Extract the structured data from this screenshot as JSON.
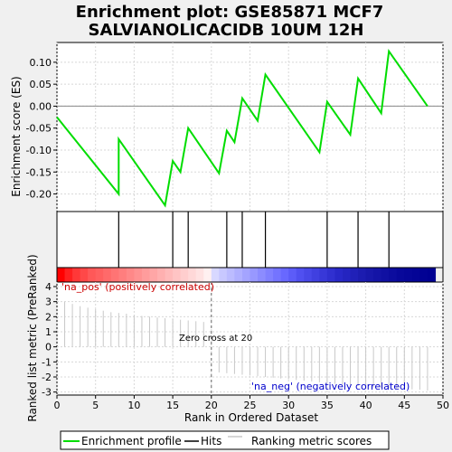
{
  "chart_data": {
    "type": "line",
    "title_line1": "Enrichment plot: GSE85871 MCF7",
    "title_line2": "SALVIANOLICACIDB 10UM 12H",
    "xlabel": "Rank in Ordered Dataset",
    "es_ylabel": "Enrichment score (ES)",
    "metric_ylabel": "Ranked list metric (PreRanked)",
    "xlim": [
      0,
      50
    ],
    "x_ticks": [
      0,
      5,
      10,
      15,
      20,
      25,
      30,
      35,
      40,
      45,
      50
    ],
    "es_ylim": [
      -0.24,
      0.145
    ],
    "es_ticks": [
      -0.2,
      -0.15,
      -0.1,
      -0.05,
      0.0,
      0.05,
      0.1
    ],
    "es_tick_labels": [
      "-0.20",
      "-0.15",
      "-0.10",
      "-0.05",
      "0.00",
      "0.05",
      "0.10"
    ],
    "metric_ylim": [
      -3.2,
      4.3
    ],
    "metric_ticks": [
      -3,
      -2,
      -1,
      0,
      1,
      2,
      3,
      4
    ],
    "es_curve": [
      [
        0,
        -0.025
      ],
      [
        8,
        -0.2
      ],
      [
        8,
        -0.075
      ],
      [
        14,
        -0.226
      ],
      [
        15,
        -0.125
      ],
      [
        16,
        -0.15
      ],
      [
        17,
        -0.05
      ],
      [
        21,
        -0.153
      ],
      [
        22,
        -0.056
      ],
      [
        23,
        -0.082
      ],
      [
        24,
        0.018
      ],
      [
        26,
        -0.033
      ],
      [
        27,
        0.072
      ],
      [
        34,
        -0.105
      ],
      [
        35,
        0.01
      ],
      [
        38,
        -0.065
      ],
      [
        39,
        0.063
      ],
      [
        42,
        -0.016
      ],
      [
        43,
        0.125
      ],
      [
        48,
        0.0
      ]
    ],
    "hits": [
      8,
      15,
      17,
      22,
      24,
      27,
      35,
      39,
      43
    ],
    "metric_bars": [
      [
        1,
        3.0
      ],
      [
        2,
        2.85
      ],
      [
        3,
        2.7
      ],
      [
        4,
        2.6
      ],
      [
        5,
        2.5
      ],
      [
        6,
        2.4
      ],
      [
        7,
        2.3
      ],
      [
        8,
        2.25
      ],
      [
        9,
        2.2
      ],
      [
        10,
        2.1
      ],
      [
        11,
        2.05
      ],
      [
        12,
        2.0
      ],
      [
        13,
        1.95
      ],
      [
        14,
        1.9
      ],
      [
        15,
        1.85
      ],
      [
        16,
        1.8
      ],
      [
        17,
        1.75
      ],
      [
        18,
        1.7
      ],
      [
        19,
        1.65
      ],
      [
        20,
        0.05
      ],
      [
        21,
        -1.7
      ],
      [
        22,
        -1.75
      ],
      [
        23,
        -1.8
      ],
      [
        24,
        -1.85
      ],
      [
        25,
        -1.9
      ],
      [
        26,
        -1.95
      ],
      [
        27,
        -2.0
      ],
      [
        28,
        -2.05
      ],
      [
        29,
        -2.1
      ],
      [
        30,
        -2.15
      ],
      [
        31,
        -2.2
      ],
      [
        32,
        -2.25
      ],
      [
        33,
        -2.3
      ],
      [
        34,
        -2.35
      ],
      [
        35,
        -2.4
      ],
      [
        36,
        -2.45
      ],
      [
        37,
        -2.5
      ],
      [
        38,
        -2.55
      ],
      [
        39,
        -2.6
      ],
      [
        40,
        -2.65
      ],
      [
        41,
        -2.7
      ],
      [
        42,
        -2.72
      ],
      [
        43,
        -2.75
      ],
      [
        44,
        -2.78
      ],
      [
        45,
        -2.8
      ],
      [
        46,
        -2.82
      ],
      [
        47,
        -2.85
      ],
      [
        48,
        -2.9
      ]
    ],
    "zero_cross_rank": 20,
    "zero_cross_label": "Zero cross at 20",
    "pos_label": "'na_pos' (positively correlated)",
    "neg_label": "'na_neg' (negatively correlated)",
    "legend": [
      "Enrichment profile",
      "Hits",
      "Ranking metric scores"
    ],
    "colors": {
      "curve": "#00dd00",
      "hits": "#000000",
      "metric": "#c8c8c8",
      "pos_text": "#cc0000",
      "neg_text": "#0000cc",
      "grid": "#d8d8d8"
    },
    "heat_stripes": [
      [
        0.5,
        "#ff0000"
      ],
      [
        1.5,
        "#ff2020"
      ],
      [
        2.5,
        "#ff3838"
      ],
      [
        3.5,
        "#ff4848"
      ],
      [
        4.5,
        "#ff5858"
      ],
      [
        5.5,
        "#ff6060"
      ],
      [
        6.5,
        "#ff6a6a"
      ],
      [
        7.5,
        "#ff7474"
      ],
      [
        8.5,
        "#ff7e7e"
      ],
      [
        9.5,
        "#ff8888"
      ],
      [
        10.5,
        "#ff9292"
      ],
      [
        11.5,
        "#ff9c9c"
      ],
      [
        12.5,
        "#ffa6a6"
      ],
      [
        13.5,
        "#ffb0b0"
      ],
      [
        14.5,
        "#ffbaba"
      ],
      [
        15.5,
        "#ffc4c4"
      ],
      [
        16.5,
        "#ffcece"
      ],
      [
        17.5,
        "#ffd8d8"
      ],
      [
        18.5,
        "#ffe2e2"
      ],
      [
        19.5,
        "#fff0f0"
      ],
      [
        20.5,
        "#d8d8ff"
      ],
      [
        21.5,
        "#c8c8ff"
      ],
      [
        22.5,
        "#bcbcff"
      ],
      [
        23.5,
        "#b0b0ff"
      ],
      [
        24.5,
        "#a4a4ff"
      ],
      [
        25.5,
        "#9898ff"
      ],
      [
        26.5,
        "#8c8cff"
      ],
      [
        27.5,
        "#8080ff"
      ],
      [
        28.5,
        "#7474ff"
      ],
      [
        29.5,
        "#6868ff"
      ],
      [
        30.5,
        "#5c5cf8"
      ],
      [
        31.5,
        "#5050f0"
      ],
      [
        32.5,
        "#4848e8"
      ],
      [
        33.5,
        "#4040e0"
      ],
      [
        34.5,
        "#3838d8"
      ],
      [
        35.5,
        "#3030d0"
      ],
      [
        36.5,
        "#2828c8"
      ],
      [
        37.5,
        "#2424c0"
      ],
      [
        38.5,
        "#2020b8"
      ],
      [
        39.5,
        "#1c1cb0"
      ],
      [
        40.5,
        "#1818aa"
      ],
      [
        41.5,
        "#1414a6"
      ],
      [
        42.5,
        "#1010a2"
      ],
      [
        43.5,
        "#0c0c9e"
      ],
      [
        44.5,
        "#08089a"
      ],
      [
        45.5,
        "#060698"
      ],
      [
        46.5,
        "#040496"
      ],
      [
        47.5,
        "#020294"
      ],
      [
        48.5,
        "#000092"
      ]
    ]
  }
}
